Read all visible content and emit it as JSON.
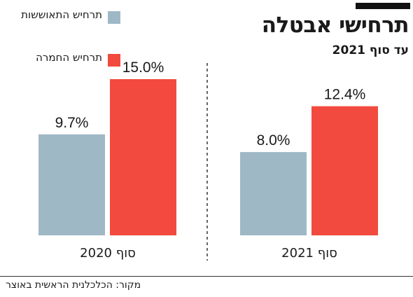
{
  "chart_data": {
    "type": "bar",
    "title": "תרחישי אבטלה",
    "subtitle": "עד סוף 2021",
    "categories": [
      "סוף 2020",
      "סוף 2021"
    ],
    "series": [
      {
        "name": "תרחיש התאוששות",
        "values": [
          9.7,
          8.0
        ],
        "labels": [
          "9.7%",
          "8.0%"
        ],
        "color": "#9fb8c6"
      },
      {
        "name": "תרחיש החמרה",
        "values": [
          15.0,
          12.4
        ],
        "labels": [
          "15.0%",
          "12.4%"
        ],
        "color": "#f24a3f"
      }
    ],
    "ylim": [
      0,
      15.0
    ],
    "grid": false,
    "legend_position": "top-left"
  },
  "source": "מקור: הכלכלנית הראשית באוצר"
}
